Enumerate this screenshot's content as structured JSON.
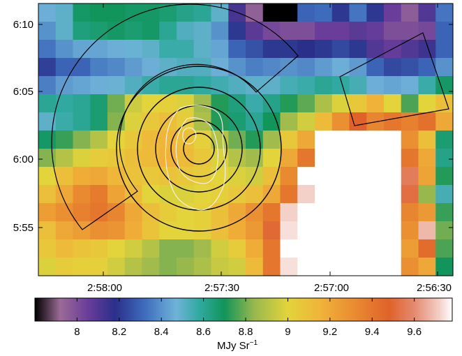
{
  "chart_data": {
    "type": "heatmap",
    "title": "",
    "xlabel": "",
    "ylabel": "",
    "x_ticks": [
      "2:58:00",
      "2:57:30",
      "2:57:00",
      "2:56:30"
    ],
    "y_ticks": [
      "5:55",
      "6:00",
      "6:05",
      "6:10"
    ],
    "colorbar": {
      "label": "MJy Sr⁻¹",
      "label_base": "MJy Sr",
      "label_exp": "−1",
      "ticks": [
        "8",
        "8.2",
        "8.4",
        "8.6",
        "8.8",
        "9",
        "9.2",
        "9.4",
        "9.6"
      ],
      "range": [
        7.8,
        9.78
      ],
      "colormap": [
        [
          7.8,
          "#000000"
        ],
        [
          7.92,
          "#9b6b96"
        ],
        [
          8.05,
          "#6a3d9a"
        ],
        [
          8.18,
          "#2a2f8a"
        ],
        [
          8.32,
          "#3e6cbd"
        ],
        [
          8.47,
          "#6fb3d8"
        ],
        [
          8.58,
          "#30a9a0"
        ],
        [
          8.7,
          "#11955a"
        ],
        [
          8.84,
          "#98b84e"
        ],
        [
          9.0,
          "#e3d43b"
        ],
        [
          9.15,
          "#f0b43a"
        ],
        [
          9.32,
          "#e98a31"
        ],
        [
          9.48,
          "#e0622a"
        ],
        [
          9.6,
          "#e48a70"
        ],
        [
          9.72,
          "#f3d0c8"
        ],
        [
          9.78,
          "#ffffff"
        ]
      ]
    },
    "grid": false,
    "nan_color": "#ffffff",
    "rows": 15,
    "cols": 24,
    "values": [
      [
        8.46,
        8.5,
        8.68,
        8.7,
        8.7,
        8.68,
        8.68,
        8.66,
        8.62,
        8.6,
        8.5,
        8.12,
        7.95,
        7.8,
        7.8,
        8.3,
        8.32,
        8.2,
        8.34,
        8.2,
        8.05,
        7.96,
        8.1,
        8.34
      ],
      [
        8.4,
        8.5,
        8.64,
        8.66,
        8.68,
        8.66,
        8.68,
        8.6,
        8.52,
        8.5,
        8.4,
        8.2,
        8.08,
        8.02,
        8.0,
        8.0,
        8.05,
        8.05,
        8.08,
        8.06,
        8.0,
        8.0,
        8.02,
        8.3
      ],
      [
        8.34,
        8.4,
        8.44,
        8.44,
        8.46,
        8.48,
        8.5,
        8.56,
        8.56,
        8.5,
        8.44,
        8.3,
        8.26,
        8.2,
        8.2,
        8.18,
        8.2,
        8.24,
        8.2,
        8.1,
        8.06,
        8.1,
        8.14,
        8.3
      ],
      [
        8.22,
        8.3,
        8.3,
        8.36,
        8.38,
        8.42,
        8.46,
        8.5,
        8.52,
        8.52,
        8.46,
        8.4,
        8.36,
        8.38,
        8.4,
        8.38,
        8.42,
        8.46,
        8.42,
        8.3,
        8.24,
        8.26,
        8.3,
        8.4
      ],
      [
        8.36,
        8.42,
        8.44,
        8.46,
        8.48,
        8.52,
        8.56,
        8.6,
        8.6,
        8.58,
        8.55,
        8.52,
        8.5,
        8.5,
        8.54,
        8.56,
        8.6,
        8.58,
        8.54,
        8.46,
        8.44,
        8.46,
        8.56,
        8.68
      ],
      [
        8.6,
        8.58,
        8.6,
        8.66,
        8.8,
        8.95,
        9.0,
        9.02,
        8.98,
        8.86,
        8.72,
        8.64,
        8.56,
        8.62,
        8.72,
        8.78,
        8.88,
        8.98,
        9.06,
        9.16,
        9.0,
        8.76,
        9.0,
        9.1
      ],
      [
        8.5,
        8.56,
        8.6,
        8.66,
        8.82,
        8.98,
        9.06,
        9.1,
        9.04,
        8.88,
        8.72,
        8.66,
        8.6,
        8.7,
        8.86,
        8.96,
        9.12,
        9.3,
        9.48,
        9.34,
        9.4,
        9.36,
        9.42,
        9.2
      ],
      [
        8.68,
        8.74,
        8.82,
        8.9,
        9.0,
        9.06,
        9.12,
        9.14,
        9.1,
        9.02,
        8.9,
        8.8,
        8.72,
        8.86,
        9.06,
        9.2,
        null,
        null,
        null,
        null,
        null,
        9.3,
        9.1,
        8.66
      ],
      [
        8.82,
        8.9,
        8.98,
        9.04,
        9.06,
        9.1,
        9.12,
        9.16,
        9.12,
        9.06,
        8.98,
        8.9,
        8.86,
        9.0,
        9.2,
        9.4,
        null,
        null,
        null,
        null,
        null,
        9.4,
        9.2,
        8.62
      ],
      [
        9.0,
        9.1,
        9.18,
        9.2,
        9.14,
        9.08,
        9.06,
        9.08,
        9.06,
        9.04,
        9.0,
        8.98,
        8.96,
        9.1,
        9.32,
        null,
        null,
        null,
        null,
        null,
        null,
        9.56,
        9.22,
        8.72
      ],
      [
        9.1,
        9.2,
        9.32,
        9.38,
        9.22,
        9.12,
        9.0,
        8.98,
        8.98,
        9.0,
        9.02,
        9.06,
        9.1,
        9.2,
        9.4,
        9.72,
        null,
        null,
        null,
        null,
        null,
        9.52,
        8.84,
        8.54
      ],
      [
        9.24,
        9.3,
        9.36,
        9.4,
        9.34,
        9.2,
        9.1,
        9.04,
        9.0,
        9.02,
        9.1,
        9.2,
        9.3,
        9.4,
        9.72,
        null,
        null,
        null,
        null,
        null,
        null,
        9.34,
        9.26,
        8.74
      ],
      [
        9.1,
        9.2,
        9.24,
        9.3,
        9.28,
        9.18,
        9.08,
        9.0,
        9.0,
        9.02,
        9.1,
        9.18,
        9.26,
        9.5,
        9.74,
        null,
        null,
        null,
        null,
        null,
        null,
        9.3,
        9.68,
        8.8
      ],
      [
        9.06,
        9.12,
        9.08,
        9.06,
        9.0,
        8.96,
        8.9,
        8.82,
        8.82,
        8.86,
        8.96,
        9.04,
        9.18,
        9.4,
        null,
        null,
        null,
        null,
        null,
        null,
        null,
        9.24,
        9.44,
        8.76
      ],
      [
        8.98,
        9.04,
        9.02,
        9.02,
        8.96,
        8.9,
        8.86,
        8.82,
        8.84,
        8.88,
        8.94,
        8.96,
        9.12,
        9.4,
        9.74,
        null,
        null,
        null,
        null,
        null,
        null,
        9.3,
        9.2,
        8.7
      ]
    ],
    "overlays": {
      "black_circles": 5,
      "annulus_sector": "left",
      "box_region": "top-right",
      "white_contours": 3
    }
  }
}
